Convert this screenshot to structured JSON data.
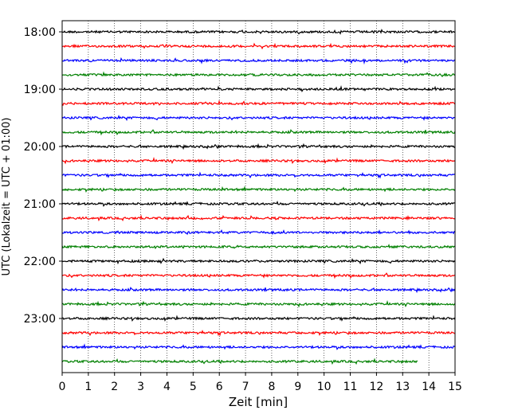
{
  "chart_data": {
    "type": "line",
    "title": "",
    "xlabel": "Zeit  [min]",
    "ylabel": "UTC (Lokalzeit = UTC + 01:00)",
    "xlim": [
      0,
      15
    ],
    "x_ticks": [
      "0",
      "1",
      "2",
      "3",
      "4",
      "5",
      "6",
      "7",
      "8",
      "9",
      "10",
      "11",
      "12",
      "13",
      "14",
      "15"
    ],
    "y_ticks": [
      "18:00",
      "19:00",
      "20:00",
      "21:00",
      "22:00",
      "23:00"
    ],
    "grid": "vertical dotted",
    "trace_interval_minutes": 15,
    "traces": [
      {
        "start": "18:00",
        "color": "#000000",
        "end_min": 15
      },
      {
        "start": "18:15",
        "color": "#ff0000",
        "end_min": 15
      },
      {
        "start": "18:30",
        "color": "#0000ff",
        "end_min": 15
      },
      {
        "start": "18:45",
        "color": "#008000",
        "end_min": 15
      },
      {
        "start": "19:00",
        "color": "#000000",
        "end_min": 15
      },
      {
        "start": "19:15",
        "color": "#ff0000",
        "end_min": 15
      },
      {
        "start": "19:30",
        "color": "#0000ff",
        "end_min": 15
      },
      {
        "start": "19:45",
        "color": "#008000",
        "end_min": 15
      },
      {
        "start": "20:00",
        "color": "#000000",
        "end_min": 15
      },
      {
        "start": "20:15",
        "color": "#ff0000",
        "end_min": 15
      },
      {
        "start": "20:30",
        "color": "#0000ff",
        "end_min": 15
      },
      {
        "start": "20:45",
        "color": "#008000",
        "end_min": 15
      },
      {
        "start": "21:00",
        "color": "#000000",
        "end_min": 15
      },
      {
        "start": "21:15",
        "color": "#ff0000",
        "end_min": 15
      },
      {
        "start": "21:30",
        "color": "#0000ff",
        "end_min": 15
      },
      {
        "start": "21:45",
        "color": "#008000",
        "end_min": 15
      },
      {
        "start": "22:00",
        "color": "#000000",
        "end_min": 15
      },
      {
        "start": "22:15",
        "color": "#ff0000",
        "end_min": 15
      },
      {
        "start": "22:30",
        "color": "#0000ff",
        "end_min": 15
      },
      {
        "start": "22:45",
        "color": "#008000",
        "end_min": 15
      },
      {
        "start": "23:00",
        "color": "#000000",
        "end_min": 15
      },
      {
        "start": "23:15",
        "color": "#ff0000",
        "end_min": 15
      },
      {
        "start": "23:30",
        "color": "#0000ff",
        "end_min": 15
      },
      {
        "start": "23:45",
        "color": "#008000",
        "end_min": 13.6
      }
    ]
  }
}
